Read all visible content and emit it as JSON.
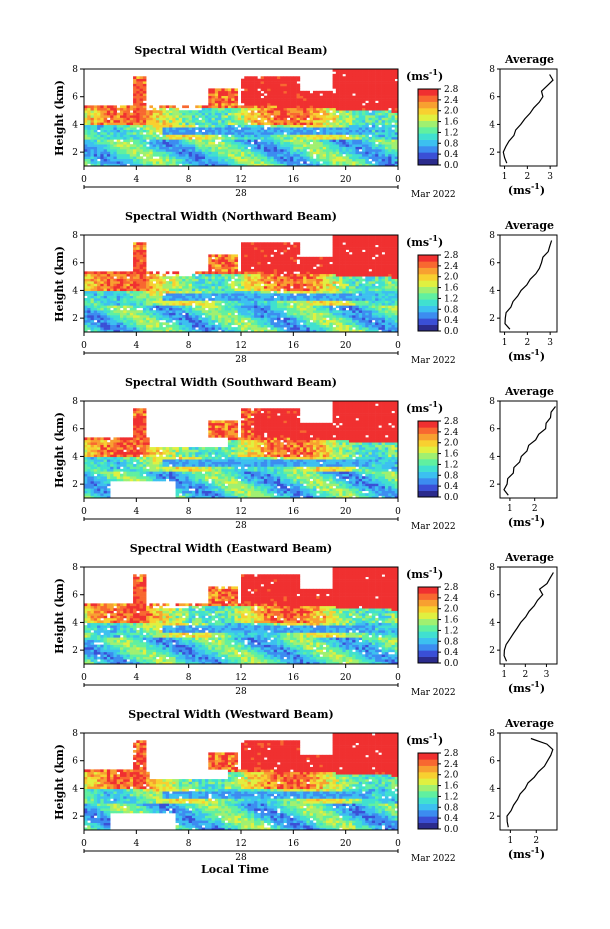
{
  "figure": {
    "xlabel": "Local Time",
    "date_suffix": "Mar 2022",
    "day_label": "28",
    "cbar_unit": "(ms",
    "cbar_unit_exp": "-1",
    "cbar_unit_close": ")",
    "avg_unit": "(ms",
    "avg_unit_exp": "-1",
    "avg_unit_close": ")",
    "ylabel": "Height (km)",
    "avg_title": "Average",
    "colorscale": [
      "#2b2b8c",
      "#3a4fd6",
      "#3c8cf0",
      "#3cc0f0",
      "#40e0d0",
      "#60f0a0",
      "#a0f070",
      "#e0f040",
      "#f8d030",
      "#f8a030",
      "#f86830",
      "#f03030"
    ],
    "xticks": [
      "0",
      "4",
      "8",
      "12",
      "16",
      "20",
      "0"
    ],
    "yticks": [
      "2",
      "4",
      "6",
      "8"
    ],
    "cbar_ticks": [
      "0.0",
      "0.4",
      "0.8",
      "1.2",
      "1.6",
      "2.0",
      "2.4",
      "2.8"
    ]
  },
  "chart_data": [
    {
      "type": "heatmap",
      "title": "Spectral Width (Vertical Beam)",
      "ylabel": "Height (km)",
      "xlabel": "",
      "x_range": [
        0,
        24
      ],
      "y_range": [
        1,
        8
      ],
      "cbar_range": [
        0.0,
        2.8
      ],
      "average": {
        "title": "Average",
        "xticks": [
          "1",
          "2",
          "3"
        ],
        "xlim": [
          0.8,
          3.3
        ],
        "heights": [
          1.2,
          1.6,
          2.0,
          2.4,
          2.8,
          3.2,
          3.6,
          4.0,
          4.4,
          4.8,
          5.2,
          5.6,
          6.0,
          6.4,
          6.8,
          7.2,
          7.6
        ],
        "values": [
          1.1,
          1.0,
          0.95,
          1.05,
          1.2,
          1.4,
          1.5,
          1.7,
          1.9,
          2.1,
          2.3,
          2.5,
          2.7,
          2.6,
          2.9,
          3.1,
          3.0
        ]
      }
    },
    {
      "type": "heatmap",
      "title": "Spectral Width (Northward Beam)",
      "ylabel": "Height (km)",
      "xlabel": "",
      "x_range": [
        0,
        24
      ],
      "y_range": [
        1,
        8
      ],
      "cbar_range": [
        0.0,
        2.8
      ],
      "average": {
        "title": "Average",
        "xticks": [
          "1",
          "2",
          "3"
        ],
        "xlim": [
          0.8,
          3.3
        ],
        "heights": [
          1.2,
          1.6,
          2.0,
          2.4,
          2.8,
          3.2,
          3.6,
          4.0,
          4.4,
          4.8,
          5.2,
          5.6,
          6.0,
          6.4,
          6.8,
          7.2,
          7.6
        ],
        "values": [
          1.2,
          1.05,
          1.0,
          1.1,
          1.25,
          1.4,
          1.55,
          1.75,
          1.95,
          2.15,
          2.35,
          2.55,
          2.6,
          2.7,
          2.9,
          3.0,
          3.05
        ]
      }
    },
    {
      "type": "heatmap",
      "title": "Spectral Width (Southward Beam)",
      "ylabel": "Height (km)",
      "xlabel": "",
      "x_range": [
        0,
        24
      ],
      "y_range": [
        1,
        8
      ],
      "cbar_range": [
        0.0,
        2.8
      ],
      "average": {
        "title": "Average",
        "xticks": [
          "1",
          "2"
        ],
        "xlim": [
          0.6,
          2.9
        ],
        "heights": [
          1.2,
          1.6,
          2.0,
          2.4,
          2.8,
          3.2,
          3.6,
          4.0,
          4.4,
          4.8,
          5.2,
          5.6,
          6.0,
          6.4,
          6.8,
          7.2,
          7.6
        ],
        "values": [
          0.9,
          0.8,
          0.85,
          0.95,
          1.1,
          1.2,
          1.35,
          1.5,
          1.65,
          1.8,
          2.0,
          2.2,
          2.4,
          2.5,
          2.6,
          2.7,
          2.8
        ]
      }
    },
    {
      "type": "heatmap",
      "title": "Spectral Width (Eastward Beam)",
      "ylabel": "Height (km)",
      "xlabel": "",
      "x_range": [
        0,
        24
      ],
      "y_range": [
        1,
        8
      ],
      "cbar_range": [
        0.0,
        2.8
      ],
      "average": {
        "title": "Average",
        "xticks": [
          "1",
          "2",
          "3"
        ],
        "xlim": [
          0.8,
          3.5
        ],
        "heights": [
          1.2,
          1.6,
          2.0,
          2.4,
          2.8,
          3.2,
          3.6,
          4.0,
          4.4,
          4.8,
          5.2,
          5.6,
          6.0,
          6.4,
          6.8,
          7.2,
          7.6
        ],
        "values": [
          1.1,
          1.0,
          1.0,
          1.1,
          1.25,
          1.45,
          1.6,
          1.8,
          2.0,
          2.2,
          2.4,
          2.6,
          2.8,
          2.7,
          3.0,
          3.2,
          3.3
        ]
      }
    },
    {
      "type": "heatmap",
      "title": "Spectral Width (Westward Beam)",
      "ylabel": "Height (km)",
      "xlabel": "Local Time",
      "x_range": [
        0,
        24
      ],
      "y_range": [
        1,
        8
      ],
      "cbar_range": [
        0.0,
        2.8
      ],
      "average": {
        "title": "Average",
        "xticks": [
          "1",
          "2"
        ],
        "xlim": [
          0.6,
          2.8
        ],
        "heights": [
          1.2,
          1.6,
          2.0,
          2.4,
          2.8,
          3.2,
          3.6,
          4.0,
          4.4,
          4.8,
          5.2,
          5.6,
          6.0,
          6.4,
          6.8,
          7.2,
          7.6
        ],
        "values": [
          0.95,
          0.85,
          0.9,
          1.0,
          1.15,
          1.25,
          1.4,
          1.55,
          1.7,
          1.9,
          2.1,
          2.3,
          2.45,
          2.55,
          2.65,
          2.4,
          1.8
        ]
      }
    }
  ]
}
